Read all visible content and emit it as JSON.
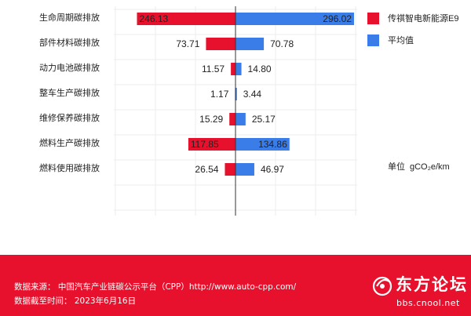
{
  "chart_data": {
    "type": "bar",
    "orientation": "horizontal-diverging",
    "categories": [
      "生命周期碳排放",
      "部件材料碳排放",
      "动力电池碳排放",
      "整车生产碳排放",
      "维修保养碳排放",
      "燃料生产碳排放",
      "燃料使用碳排放"
    ],
    "series": [
      {
        "name": "传祺智电新能源E9",
        "color": "#e8112d",
        "side": "left",
        "values": [
          246.13,
          73.71,
          11.57,
          1.17,
          15.29,
          117.85,
          26.54
        ]
      },
      {
        "name": "平均值",
        "color": "#3a7ce8",
        "side": "right",
        "values": [
          296.02,
          70.78,
          14.8,
          3.44,
          25.17,
          134.86,
          46.97
        ]
      }
    ],
    "value_labels": [
      [
        "246.13",
        "73.71",
        "11.57",
        "1.17",
        "15.29",
        "117.85",
        "26.54"
      ],
      [
        "296.02",
        "70.78",
        "14.80",
        "3.44",
        "25.17",
        "134.86",
        "46.97"
      ]
    ],
    "xlim": [
      -300,
      300
    ],
    "grid": true,
    "legend_position": "top-right",
    "unit_label": "单位",
    "unit_value": "gCO₂e/km"
  },
  "footer": {
    "source": "数据来源：  中国汽车产业链碳公示平台（CPP）http://www.auto-cpp.com/",
    "date": "数据截至时间：  2023年6月16日"
  },
  "watermark": {
    "text": "东方论坛",
    "url": "bbs.cnool.net"
  }
}
